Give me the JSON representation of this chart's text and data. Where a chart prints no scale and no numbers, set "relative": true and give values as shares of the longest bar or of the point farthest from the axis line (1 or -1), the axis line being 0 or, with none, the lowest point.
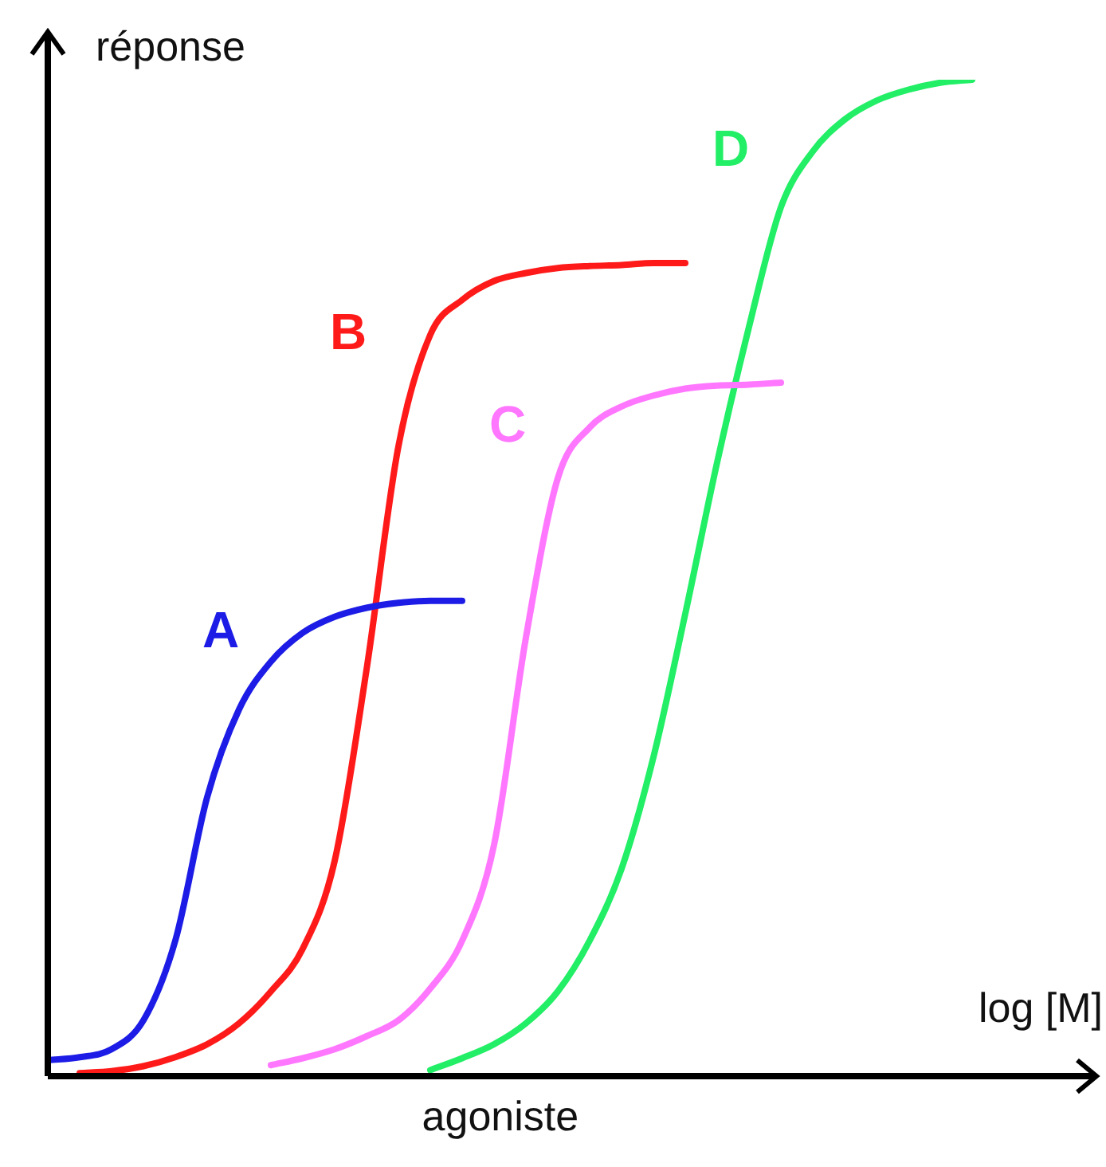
{
  "chart_data": {
    "type": "line",
    "relative": true,
    "ylabel": "réponse",
    "xlabel": "log [M]",
    "annotations": [
      "agoniste"
    ],
    "categories": [
      null,
      null,
      null,
      null,
      null,
      null,
      null,
      null,
      null,
      null,
      null,
      null,
      null,
      null,
      null,
      null,
      null,
      null,
      null,
      null,
      null,
      null,
      null,
      null,
      null,
      null,
      null,
      null,
      null,
      null
    ],
    "series": [
      {
        "name": "A",
        "color": "#1c1ce6",
        "values": [
          0.016,
          0.019,
          0.027,
          0.056,
          0.136,
          0.28,
          0.368,
          0.416,
          0.445,
          0.461,
          0.47,
          0.475,
          0.477,
          0.477,
          null,
          null,
          null,
          null,
          null,
          null,
          null,
          null,
          null,
          null,
          null,
          null,
          null,
          null,
          null,
          null
        ]
      },
      {
        "name": "B",
        "color": "#ff1a1a",
        "values": [
          null,
          0.003,
          0.005,
          0.01,
          0.019,
          0.032,
          0.053,
          0.085,
          0.128,
          0.216,
          0.408,
          0.632,
          0.744,
          0.779,
          0.798,
          0.806,
          0.811,
          0.813,
          0.814,
          0.816,
          0.816,
          null,
          null,
          null,
          null,
          null,
          null,
          null,
          null,
          null
        ]
      },
      {
        "name": "C",
        "color": "#ff77ff",
        "values": [
          null,
          null,
          null,
          null,
          null,
          null,
          null,
          0.011,
          0.018,
          0.027,
          0.04,
          0.056,
          0.088,
          0.136,
          0.232,
          0.44,
          0.6,
          0.651,
          0.672,
          0.683,
          0.69,
          0.693,
          0.694,
          0.696,
          null,
          null,
          null,
          null,
          null,
          null
        ]
      },
      {
        "name": "D",
        "color": "#22ee66",
        "values": [
          null,
          null,
          null,
          null,
          null,
          null,
          null,
          null,
          null,
          null,
          null,
          null,
          0.006,
          0.018,
          0.032,
          0.053,
          0.085,
          0.136,
          0.208,
          0.32,
          0.464,
          0.616,
          0.752,
          0.872,
          0.928,
          0.96,
          0.979,
          0.99,
          0.997,
          1
        ]
      }
    ],
    "legend": false,
    "marker": "none",
    "line_style": "solid"
  }
}
